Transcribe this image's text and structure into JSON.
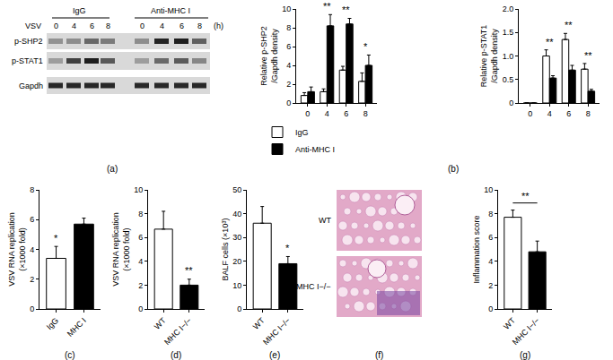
{
  "panel_labels": [
    "(a)",
    "(b)",
    "(c)",
    "(d)",
    "(e)",
    "(f)",
    "(g)"
  ],
  "blot": {
    "groups": [
      "IgG",
      "Anti-MHC I"
    ],
    "treatment": "VSV",
    "times": [
      0,
      4,
      6,
      8
    ],
    "time_unit": "(h)",
    "rows": [
      "p-SHP2",
      "p-STAT1",
      "Gapdh"
    ]
  },
  "histology": {
    "labels": [
      "WT",
      "MHC I−/−"
    ]
  },
  "chart_data": [
    {
      "type": "bar",
      "y_label": "Relative p-SHP2\n/Gapdh density",
      "categories": [
        0,
        4,
        6,
        8
      ],
      "series": [
        {
          "name": "IgG",
          "color": "#ffffff",
          "values": [
            0.8,
            1.2,
            3.5,
            2.3
          ],
          "errors": [
            0.3,
            0.3,
            0.4,
            0.9
          ]
        },
        {
          "name": "Anti-MHC I",
          "color": "#000000",
          "values": [
            1.2,
            8.2,
            8.4,
            4.0
          ],
          "errors": [
            0.5,
            1.2,
            0.6,
            1.1
          ]
        }
      ],
      "ylim": [
        0,
        10
      ],
      "yticks": [
        0,
        2,
        4,
        6,
        8,
        10
      ],
      "legend": "bottom",
      "annotations": [
        {
          "category": 4,
          "text": "**"
        },
        {
          "category": 6,
          "text": "**"
        },
        {
          "category": 8,
          "text": "*"
        }
      ]
    },
    {
      "type": "bar",
      "y_label": "Relative p-STAT1\n/Gapdh density",
      "categories": [
        0,
        4,
        6,
        8
      ],
      "series": [
        {
          "name": "IgG",
          "color": "#ffffff",
          "values": [
            0,
            1.0,
            1.35,
            0.72
          ],
          "errors": [
            0,
            0.13,
            0.13,
            0.12
          ]
        },
        {
          "name": "Anti-MHC I",
          "color": "#000000",
          "values": [
            0,
            0.53,
            0.7,
            0.25
          ],
          "errors": [
            0,
            0.05,
            0.1,
            0.04
          ]
        }
      ],
      "ylim": [
        0,
        2
      ],
      "yticks": [
        0,
        0.5,
        {
          "value": 1,
          "label": "1.0"
        },
        1.5,
        {
          "value": 2,
          "label": "2.0"
        }
      ],
      "annotations": [
        {
          "category": 4,
          "text": "**"
        },
        {
          "category": 6,
          "text": "**"
        },
        {
          "category": 8,
          "text": "**"
        }
      ]
    },
    {
      "type": "bar",
      "y_label": "VSV RNA replication\n(×1000 fold)",
      "categories": [
        "IgG",
        "MHC I"
      ],
      "values": [
        3.4,
        5.7
      ],
      "errors": [
        0.8,
        0.4
      ],
      "colors": [
        "#ffffff",
        "#000000"
      ],
      "ylim": [
        0,
        8
      ],
      "yticks": [
        0,
        2,
        4,
        6,
        8
      ],
      "annotations": [
        {
          "category": "IgG",
          "text": "*"
        }
      ]
    },
    {
      "type": "bar",
      "y_label": "VSV RNA replication\n(×1000 fold)",
      "categories": [
        "WT",
        "MHC I−/−"
      ],
      "values": [
        6.7,
        2.0
      ],
      "errors": [
        1.5,
        0.5
      ],
      "colors": [
        "#ffffff",
        "#000000"
      ],
      "ylim": [
        0,
        10
      ],
      "yticks": [
        0,
        2,
        4,
        6,
        8,
        10
      ],
      "annotations": [
        {
          "category": "MHC I−/−",
          "text": "**"
        }
      ]
    },
    {
      "type": "bar",
      "y_label": "BALF cells (×10³)",
      "categories": [
        "WT",
        "MHC I−/−"
      ],
      "values": [
        36,
        19
      ],
      "errors": [
        7,
        3
      ],
      "colors": [
        "#ffffff",
        "#000000"
      ],
      "ylim": [
        0,
        50
      ],
      "yticks": [
        0,
        10,
        20,
        30,
        40,
        50
      ],
      "annotations": [
        {
          "category": "MHC I−/−",
          "text": "*"
        }
      ]
    },
    {
      "type": "bar",
      "y_label": "Inflammation score",
      "categories": [
        "WT",
        "MHC I−/−"
      ],
      "values": [
        7.7,
        4.8
      ],
      "errors": [
        0.6,
        0.9
      ],
      "colors": [
        "#ffffff",
        "#000000"
      ],
      "ylim": [
        0,
        10
      ],
      "yticks": [
        0,
        2,
        4,
        6,
        8,
        10
      ],
      "annotations": [
        {
          "categories": [
            "WT",
            "MHC I−/−"
          ],
          "text": "**"
        }
      ]
    }
  ]
}
